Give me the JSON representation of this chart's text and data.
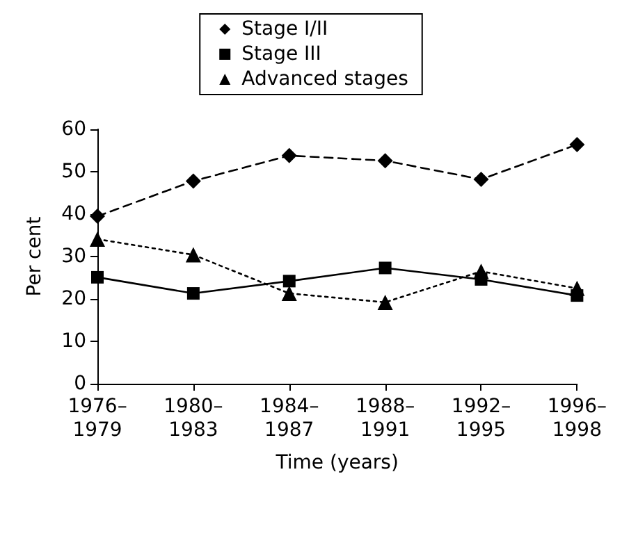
{
  "chart_data": {
    "type": "line",
    "xlabel": "Time (years)",
    "ylabel": "Per cent",
    "categories": [
      "1976–\n1979",
      "1980–\n1983",
      "1984–\n1987",
      "1988–\n1991",
      "1992–\n1995",
      "1996–\n1998"
    ],
    "series": [
      {
        "name": "Stage I/II",
        "color": "#000000",
        "marker": "diamond",
        "line_style": "dashed",
        "values": [
          39.5,
          47.8,
          53.8,
          52.6,
          48.2,
          56.4
        ]
      },
      {
        "name": "Stage III",
        "color": "#000000",
        "marker": "square",
        "line_style": "solid",
        "values": [
          25.1,
          21.3,
          24.2,
          27.3,
          24.6,
          20.8
        ]
      },
      {
        "name": "Advanced stages",
        "color": "#000000",
        "marker": "triangle",
        "line_style": "dotted",
        "values": [
          34.1,
          30.4,
          21.3,
          19.2,
          26.5,
          22.5
        ]
      }
    ],
    "ylim": [
      0,
      60
    ],
    "yticks": [
      0,
      10,
      20,
      30,
      40,
      50,
      60
    ],
    "grid": false,
    "legend": "top"
  }
}
